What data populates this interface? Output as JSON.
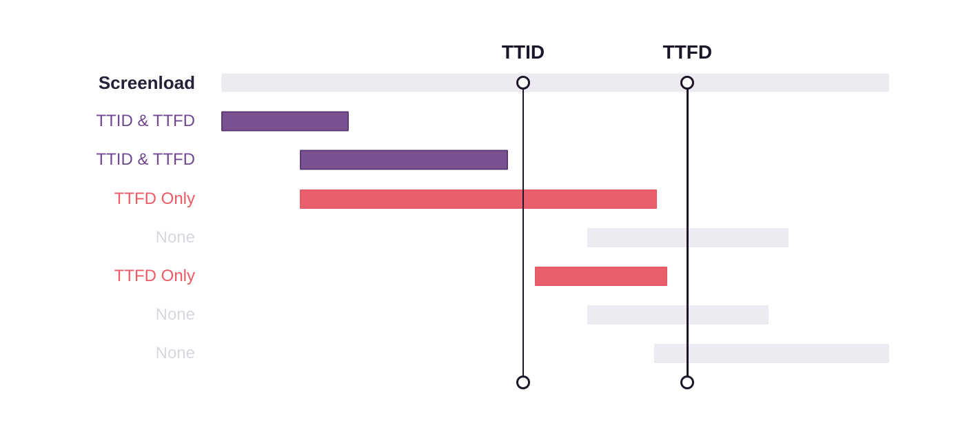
{
  "diagram": {
    "background": "#ffffff",
    "rows": [
      {
        "label": "Screenload",
        "type": "screenload",
        "start": 0,
        "end": 100
      },
      {
        "label": "TTID & TTFD",
        "type": "ttid_ttfd",
        "start": 0,
        "end": 19.1
      },
      {
        "label": "TTID & TTFD",
        "type": "ttid_ttfd",
        "start": 11.8,
        "end": 42.9
      },
      {
        "label": "TTFD Only",
        "type": "ttfd_only",
        "start": 11.8,
        "end": 65.2
      },
      {
        "label": "None",
        "type": "none",
        "start": 54.8,
        "end": 84.9
      },
      {
        "label": "TTFD Only",
        "type": "ttfd_only",
        "start": 47.0,
        "end": 66.8
      },
      {
        "label": "None",
        "type": "none",
        "start": 54.8,
        "end": 81.9
      },
      {
        "label": "None",
        "type": "none",
        "start": 64.8,
        "end": 100
      }
    ],
    "markers": [
      {
        "label": "TTID",
        "position": 45.2
      },
      {
        "label": "TTFD",
        "position": 69.8
      }
    ],
    "colors": {
      "background": "#ffffff",
      "track": "#edeaf2",
      "none_fill": "#edeaf2",
      "purple_fill": "#7a5191",
      "purple_border": "#5d3a75",
      "red_fill": "#e9606c",
      "red_border": "#e05465",
      "dark": "#1c1528",
      "label_screenload": "#262038",
      "label_purple": "#6f4792",
      "label_red": "#ee5a64",
      "label_none": "#d9d6e0"
    }
  }
}
